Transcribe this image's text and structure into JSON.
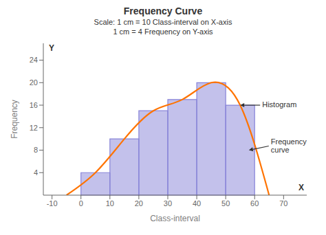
{
  "chart_data": {
    "type": "histogram",
    "title": "Frequency Curve",
    "subtitle": [
      "Scale: 1 cm = 10 Class-interval on X-axis",
      "1 cm = 4 Frequency on Y-axis"
    ],
    "xlabel": "Class-interval",
    "ylabel": "Frequency",
    "bins": [
      0,
      10,
      20,
      30,
      40,
      50,
      60
    ],
    "values": [
      4,
      10,
      15,
      17,
      20,
      16
    ],
    "color": "#8884d8",
    "series": [
      {
        "type": "line",
        "x": [
          -5,
          5,
          15,
          25,
          35,
          45,
          55,
          65
        ],
        "values": [
          0,
          4,
          10,
          15,
          17,
          20,
          16,
          0
        ],
        "color": "#ff7300"
      }
    ],
    "xlim": [
      -13,
      78
    ],
    "xticks": [
      -10,
      0,
      10,
      20,
      30,
      40,
      50,
      60,
      70
    ],
    "ylim": [
      0,
      27
    ],
    "yticks": [
      4,
      8,
      12,
      16,
      20,
      24
    ],
    "grid": false,
    "annotations": [
      {
        "text": "X"
      },
      {
        "text": "Y"
      },
      {
        "text": "Histogram",
        "x": 55,
        "y": 16
      },
      {
        "text": "Frequency\ncurve",
        "x": 58,
        "y": 8
      }
    ]
  }
}
